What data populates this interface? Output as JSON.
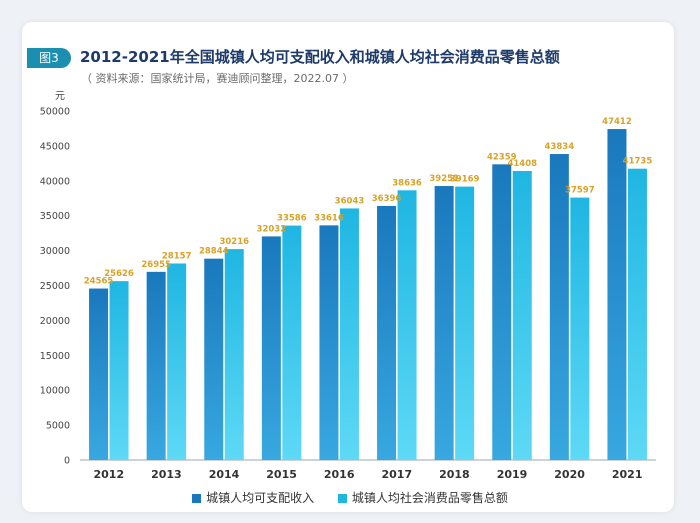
{
  "figure": {
    "tag": "图3",
    "title": "2012-2021年全国城镇人均可支配收入和城镇人均社会消费品零售总额",
    "source": "（ 资料来源：国家统计局，赛迪顾问整理，2022.07 ）"
  },
  "colors": {
    "series1_top": "#1a78bd",
    "series1_bottom": "#38a8e0",
    "series2_top": "#1fb6e2",
    "series2_bottom": "#5ed9f6",
    "label": "#d9a228",
    "axis_text": "#444444",
    "grid": "#dde3ea"
  },
  "chart_data": {
    "type": "bar",
    "title": "2012-2021年全国城镇人均可支配收入和城镇人均社会消费品零售总额",
    "ylabel": "元",
    "xlabel": "",
    "ylim": [
      0,
      50000
    ],
    "yticks": [
      0,
      5000,
      10000,
      15000,
      20000,
      25000,
      30000,
      35000,
      40000,
      45000,
      50000
    ],
    "grid": false,
    "legend": "bottom-center",
    "categories": [
      "2012",
      "2013",
      "2014",
      "2015",
      "2016",
      "2017",
      "2018",
      "2019",
      "2020",
      "2021"
    ],
    "series": [
      {
        "name": "城镇人均可支配收入",
        "values": [
          24565,
          26955,
          28844,
          32032,
          33616,
          36396,
          39251,
          42359,
          43834,
          47412
        ]
      },
      {
        "name": "城镇人均社会消费品零售总额",
        "values": [
          25626,
          28157,
          30216,
          33586,
          36043,
          38636,
          39169,
          41408,
          37597,
          41735
        ]
      }
    ]
  }
}
